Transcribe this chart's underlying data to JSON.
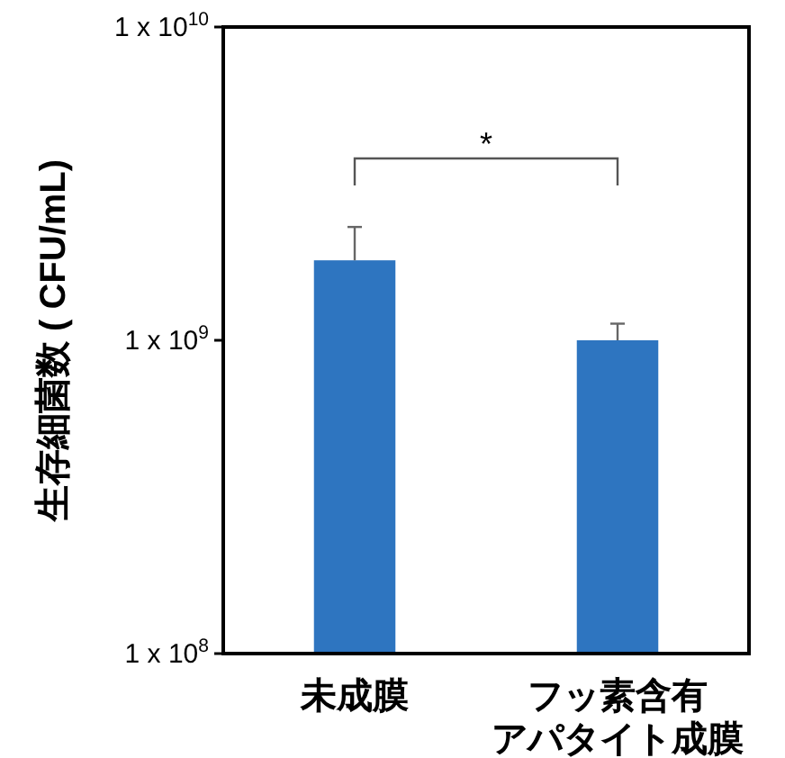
{
  "chart_data": {
    "type": "bar",
    "ylabel": "生存細菌数 ( CFU/mL)",
    "categories": [
      "未成膜",
      "フッ素含有アパタイト成膜"
    ],
    "values": [
      1800000000.0,
      1000000000.0
    ],
    "color": "#2e75c0",
    "errors": [
      [
        1800000000.0,
        2300000000.0
      ],
      [
        1000000000.0,
        1130000000.0
      ]
    ],
    "log": "y",
    "ylim": [
      100000000.0,
      10000000000.0
    ],
    "yticks": [
      {
        "value": 100000000.0,
        "label": "1 x 10$^{8}$"
      },
      {
        "value": 1000000000.0,
        "label": "1 x 10$^{9}$"
      },
      {
        "value": 10000000000.0,
        "label": "1 x 10$^{10}$"
      }
    ],
    "grid": false,
    "annotations": [
      "*"
    ]
  }
}
